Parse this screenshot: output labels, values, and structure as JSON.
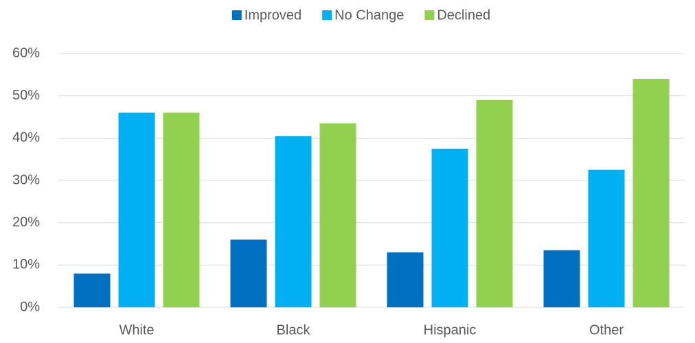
{
  "chart_data": {
    "type": "bar",
    "categories": [
      "White",
      "Black",
      "Hispanic",
      "Other"
    ],
    "series": [
      {
        "name": "Improved",
        "color": "#0070c0",
        "values": [
          8,
          16,
          13,
          13.5
        ]
      },
      {
        "name": "No Change",
        "color": "#00b0f0",
        "values": [
          46,
          40.5,
          37.5,
          32.5
        ]
      },
      {
        "name": "Declined",
        "color": "#92d050",
        "values": [
          46,
          43.5,
          49,
          54
        ]
      }
    ],
    "ylim": [
      0,
      60
    ],
    "yticks": [
      {
        "value": 0,
        "label": "0%"
      },
      {
        "value": 10,
        "label": "10%"
      },
      {
        "value": 20,
        "label": "20%"
      },
      {
        "value": 30,
        "label": "30%"
      },
      {
        "value": 40,
        "label": "40%"
      },
      {
        "value": 50,
        "label": "50%"
      },
      {
        "value": 60,
        "label": "60%"
      }
    ],
    "grid": true,
    "legend": "top"
  }
}
